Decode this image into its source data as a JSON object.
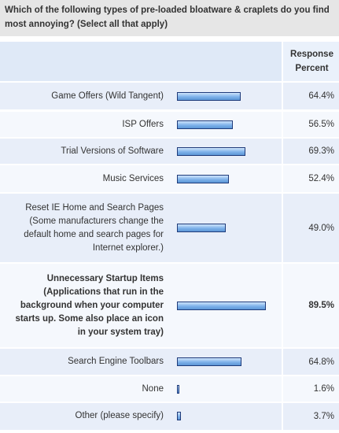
{
  "question": "Which of the following types of pre-loaded bloatware & craplets do you find most annoying? (Select all that apply)",
  "header": {
    "response_percent_line1": "Response",
    "response_percent_line2": "Percent"
  },
  "chart_data": {
    "type": "bar",
    "orientation": "horizontal",
    "title": "Which of the following types of pre-loaded bloatware & craplets do you find most annoying? (Select all that apply)",
    "xlim": [
      0,
      100
    ],
    "grid": false,
    "categories": [
      "Game Offers (Wild Tangent)",
      "ISP Offers",
      "Trial Versions of Software",
      "Music Services",
      "Reset IE Home and Search Pages (Some manufacturers change the default home and search pages for Internet explorer.)",
      "Unnecessary Startup Items (Applications that run in the background when your computer starts up. Some also place an icon in your system tray)",
      "Search Engine Toolbars",
      "None",
      "Other (please specify)"
    ],
    "values": [
      64.4,
      56.5,
      69.3,
      52.4,
      49.0,
      89.5,
      64.8,
      1.6,
      3.7
    ],
    "value_labels": [
      "64.4%",
      "56.5%",
      "69.3%",
      "52.4%",
      "49.0%",
      "89.5%",
      "64.8%",
      "1.6%",
      "3.7%"
    ],
    "highlighted": [
      false,
      false,
      false,
      false,
      false,
      true,
      false,
      false,
      false
    ]
  }
}
